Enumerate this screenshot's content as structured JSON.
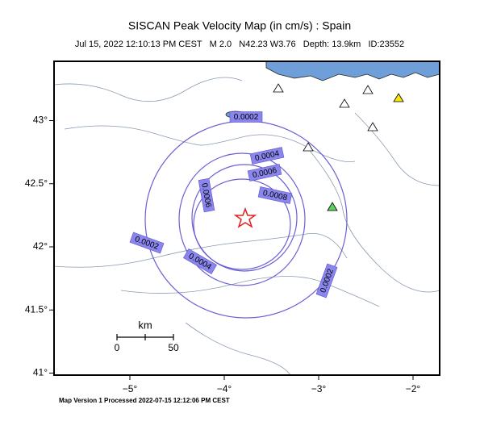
{
  "header": {
    "title": "SISCAN Peak Velocity Map (in cm/s) : Spain",
    "subtitle": "Jul 15, 2022 12:10:13 PM CEST   M 2.0   N42.23 W3.76   Depth: 13.9km   ID:23552"
  },
  "map": {
    "x_axis": {
      "ticks": [
        {
          "value": -5,
          "label": "−5°"
        },
        {
          "value": -4,
          "label": "−4°"
        },
        {
          "value": -3,
          "label": "−3°"
        },
        {
          "value": -2,
          "label": "−2°"
        }
      ]
    },
    "y_axis": {
      "ticks": [
        {
          "value": 43,
          "label": "43°"
        },
        {
          "value": 42.5,
          "label": "42.5°"
        },
        {
          "value": 42,
          "label": "42°"
        },
        {
          "value": 41.5,
          "label": "41.5°"
        },
        {
          "value": 41,
          "label": "41°"
        }
      ]
    },
    "contour_labels": [
      "0.0002",
      "0.0004",
      "0.0006",
      "0.0008",
      "0.0006",
      "0.0002",
      "0.0004",
      "0.0002"
    ],
    "scale_bar": {
      "unit": "km",
      "ticks": [
        "0",
        "50"
      ]
    }
  },
  "footer": "Map Version 1 Processed 2022-07-15 12:12:06 PM CEST"
}
